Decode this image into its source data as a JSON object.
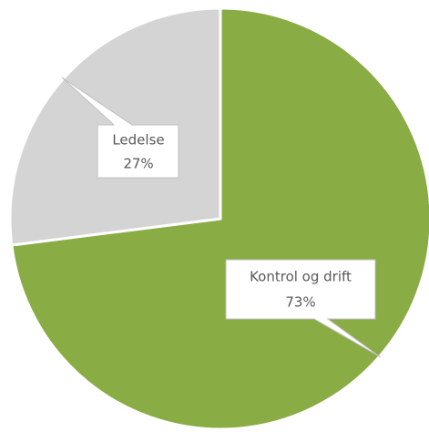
{
  "chart_data": {
    "type": "pie",
    "categories": [
      "Kontrol og drift",
      "Ledelse"
    ],
    "values": [
      73,
      27
    ],
    "value_labels": [
      "73%",
      "27%"
    ],
    "colors": [
      "#8aac45",
      "#d4d4d4"
    ]
  }
}
